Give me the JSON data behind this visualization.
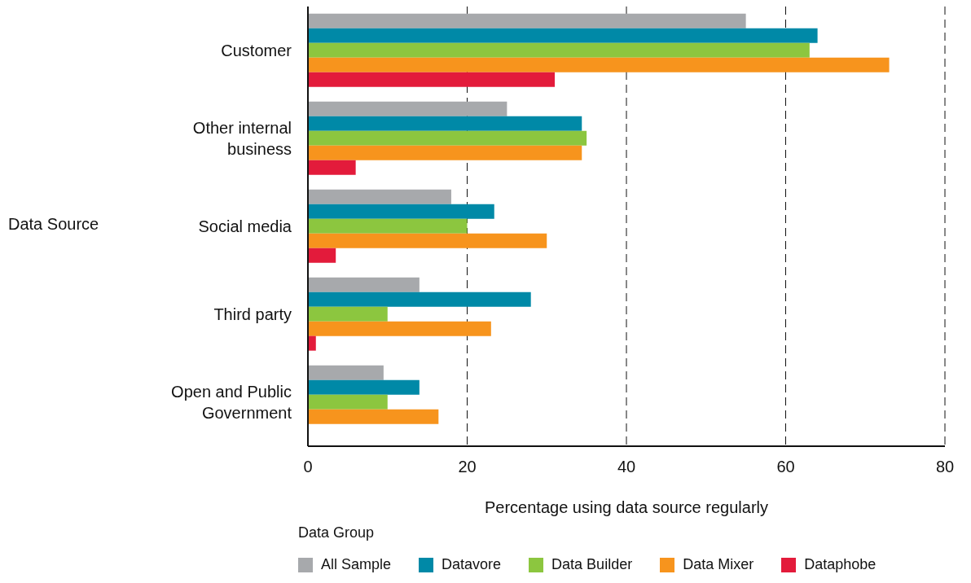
{
  "chart_data": {
    "type": "bar",
    "orientation": "horizontal",
    "categories": [
      "Customer",
      "Other internal business",
      "Social media",
      "Third party",
      "Open and Public Government"
    ],
    "series": [
      {
        "name": "All Sample",
        "color": "#a7a9ac",
        "values": [
          55,
          25,
          18,
          14,
          9.5
        ]
      },
      {
        "name": "Datavore",
        "color": "#0089a7",
        "values": [
          64,
          34.4,
          23.4,
          28,
          14
        ]
      },
      {
        "name": "Data Builder",
        "color": "#8cc63f",
        "values": [
          63,
          35,
          20,
          10,
          10
        ]
      },
      {
        "name": "Data Mixer",
        "color": "#f7941d",
        "values": [
          73,
          34.4,
          30,
          23,
          16.4
        ]
      },
      {
        "name": "Dataphobe",
        "color": "#e31b3b",
        "values": [
          31,
          6,
          3.5,
          1,
          null
        ]
      }
    ],
    "xlim": [
      0,
      80
    ],
    "xticks": [
      0,
      20,
      40,
      60,
      80
    ],
    "xlabel": "Percentage using data source regularly",
    "ylabel": "Data Source",
    "legend_title": "Data Group",
    "legend": "bottom",
    "grid": "x"
  }
}
